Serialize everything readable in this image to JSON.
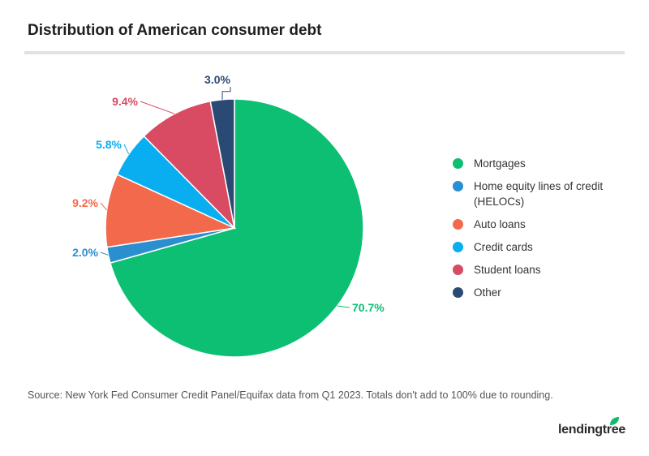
{
  "title": "Distribution of American consumer debt",
  "source": "Source: New York Fed Consumer Credit Panel/Equifax data from Q1 2023. Totals don't add to 100% due to rounding.",
  "brand": "lendingtree",
  "colors": {
    "Mortgages": "#0dbf73",
    "HELOCs": "#2b8ecf",
    "Auto loans": "#f26a4b",
    "Credit cards": "#09aef0",
    "Student loans": "#d84b63",
    "Other": "#2a4a74",
    "brand_leaf": "#0fbb6e"
  },
  "chart_data": {
    "type": "pie",
    "title": "Distribution of American consumer debt",
    "legend_position": "right",
    "slices": [
      {
        "label": "Mortgages",
        "legend_lines": [
          "Mortgages"
        ],
        "value": 70.7,
        "value_label": "70.7%",
        "color": "#0dbf73"
      },
      {
        "label": "Home equity lines of credit (HELOCs)",
        "legend_lines": [
          "Home equity lines of credit",
          "(HELOCs)"
        ],
        "value": 2.0,
        "value_label": "2.0%",
        "color": "#2b8ecf"
      },
      {
        "label": "Auto loans",
        "legend_lines": [
          "Auto loans"
        ],
        "value": 9.2,
        "value_label": "9.2%",
        "color": "#f26a4b"
      },
      {
        "label": "Credit cards",
        "legend_lines": [
          "Credit cards"
        ],
        "value": 5.8,
        "value_label": "5.8%",
        "color": "#09aef0"
      },
      {
        "label": "Student loans",
        "legend_lines": [
          "Student loans"
        ],
        "value": 9.4,
        "value_label": "9.4%",
        "color": "#d84b63"
      },
      {
        "label": "Other",
        "legend_lines": [
          "Other"
        ],
        "value": 3.0,
        "value_label": "3.0%",
        "color": "#2a4a74"
      }
    ]
  }
}
